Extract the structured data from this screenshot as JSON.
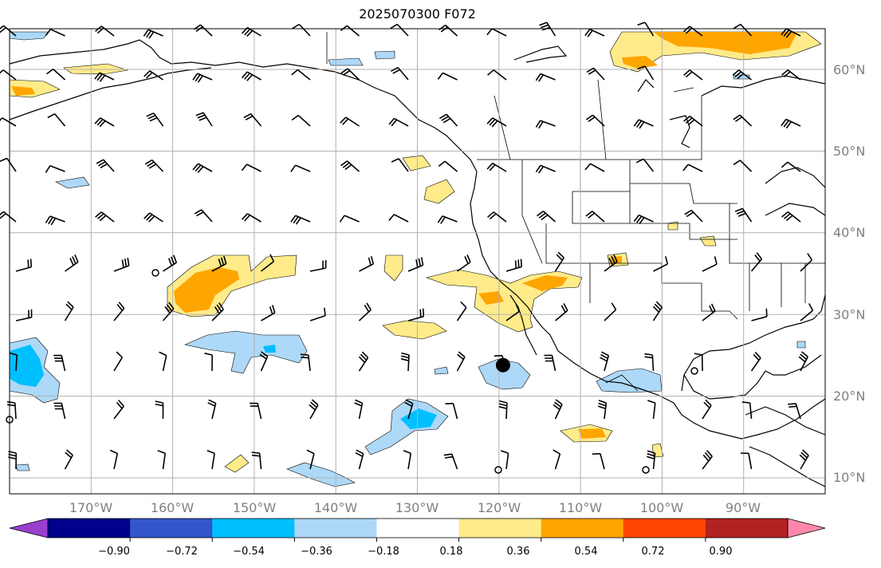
{
  "title": "2025070300 F072",
  "map": {
    "lat_labels": [
      "60°N",
      "50°N",
      "40°N",
      "30°N",
      "20°N",
      "10°N"
    ],
    "lon_labels": [
      "170°W",
      "160°W",
      "150°W",
      "140°W",
      "130°W",
      "120°W",
      "110°W",
      "100°W",
      "90°W"
    ],
    "lon_range": [
      -180,
      -80
    ],
    "lat_range": [
      8,
      65
    ],
    "marker": {
      "lon": -119.5,
      "lat": 23.8
    }
  },
  "colorbar": {
    "ticks": [
      "−0.90",
      "−0.72",
      "−0.54",
      "−0.36",
      "−0.18",
      "0.18",
      "0.36",
      "0.54",
      "0.72",
      "0.90"
    ],
    "colors": [
      "#9b3fcf",
      "#00008b",
      "#3355cc",
      "#00bfff",
      "#add8f7",
      "#ffffff",
      "#ffeb8a",
      "#ffa500",
      "#ff4500",
      "#b22222",
      "#ff88aa"
    ]
  },
  "palette": {
    "yellow": "#ffeb8a",
    "orange": "#ffa500",
    "lightblue": "#add8f7",
    "blue": "#00bfff",
    "grid": "#b0b0b0"
  }
}
